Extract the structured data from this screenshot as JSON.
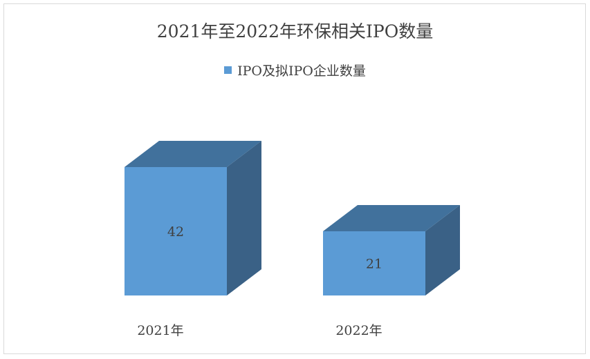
{
  "chart_data": {
    "type": "bar",
    "title": "2021年至2022年环保相关IPO数量",
    "categories": [
      "2021年",
      "2022年"
    ],
    "series": [
      {
        "name": "IPO及拟IPO企业数量",
        "values": [
          42,
          21
        ]
      }
    ],
    "data_labels": [
      "42",
      "21"
    ],
    "xlabel": "",
    "ylabel": "",
    "ylim": [
      0,
      42
    ],
    "grid": false,
    "legend": "top",
    "style": "3d-column",
    "colors": {
      "front": "#5b9bd5",
      "top": "#41719c",
      "side": "#3a6186"
    }
  }
}
